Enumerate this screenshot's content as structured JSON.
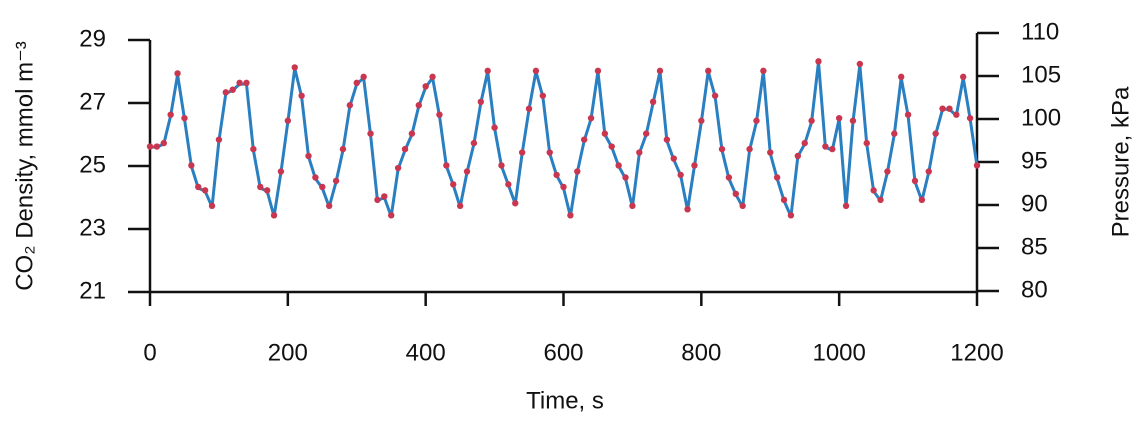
{
  "chart_data": {
    "type": "line",
    "x_label": "Time, s",
    "y_label": "CO₂ Density, mmol m⁻³",
    "y2_label": "Pressure, kPa",
    "x": [
      0,
      10,
      20,
      30,
      40,
      50,
      60,
      70,
      80,
      90,
      100,
      110,
      120,
      130,
      140,
      150,
      160,
      170,
      180,
      190,
      200,
      210,
      220,
      230,
      240,
      250,
      260,
      270,
      280,
      290,
      300,
      310,
      320,
      330,
      340,
      350,
      360,
      370,
      380,
      390,
      400,
      410,
      420,
      430,
      440,
      450,
      460,
      470,
      480,
      490,
      500,
      510,
      520,
      530,
      540,
      550,
      560,
      570,
      580,
      590,
      600,
      610,
      620,
      630,
      640,
      650,
      660,
      670,
      680,
      690,
      700,
      710,
      720,
      730,
      740,
      750,
      760,
      770,
      780,
      790,
      800,
      810,
      820,
      830,
      840,
      850,
      860,
      870,
      880,
      890,
      900,
      910,
      920,
      930,
      940,
      950,
      960,
      970,
      980,
      990,
      1000,
      1010,
      1020,
      1030,
      1040,
      1050,
      1060,
      1070,
      1080,
      1090,
      1100,
      1110,
      1120,
      1130,
      1140,
      1150,
      1160,
      1170,
      1180,
      1190,
      1200
    ],
    "series": [
      {
        "color": "#2a7fc1",
        "values": [
          25.6,
          25.6,
          25.7,
          26.6,
          27.9,
          26.5,
          25.0,
          24.3,
          24.2,
          23.7,
          25.8,
          27.3,
          27.4,
          27.6,
          27.6,
          25.5,
          24.3,
          24.2,
          23.4,
          24.8,
          26.4,
          28.1,
          27.2,
          25.3,
          24.6,
          24.3,
          23.7,
          24.5,
          25.5,
          26.9,
          27.6,
          27.8,
          26.0,
          23.9,
          24.0,
          23.4,
          24.9,
          25.5,
          26.0,
          26.9,
          27.5,
          27.8,
          26.6,
          25.0,
          24.4,
          23.7,
          24.8,
          25.7,
          27.0,
          28.0,
          26.2,
          25.0,
          24.4,
          23.8,
          25.4,
          26.8,
          28.0,
          27.2,
          25.4,
          24.7,
          24.3,
          23.4,
          24.8,
          25.8,
          26.5,
          28.0,
          26.0,
          25.6,
          25.0,
          24.6,
          23.7,
          25.4,
          26.0,
          27.0,
          28.0,
          25.8,
          25.2,
          24.7,
          23.6,
          25.0,
          26.4,
          28.0,
          27.2,
          25.5,
          24.6,
          24.1,
          23.7,
          25.5,
          26.4,
          28.0,
          25.4,
          24.6,
          23.9,
          23.4,
          25.3,
          25.7,
          26.4,
          28.3,
          25.6,
          25.5,
          26.5,
          23.7,
          26.4,
          28.2,
          25.7,
          24.2,
          23.9,
          24.8,
          26.0,
          27.8,
          26.6,
          24.5,
          23.9,
          24.8,
          26.0,
          26.8,
          26.8,
          26.6,
          27.8,
          26.5,
          25.0
        ]
      },
      {
        "color": "#c8374f",
        "axis": "y2",
        "values": [
          96.8,
          96.8,
          97.2,
          100.5,
          105.3,
          100.1,
          94.6,
          92.1,
          91.7,
          89.9,
          97.6,
          103.1,
          103.4,
          104.2,
          104.2,
          96.5,
          92.1,
          91.7,
          88.8,
          93.9,
          99.8,
          106.0,
          102.7,
          95.7,
          93.2,
          92.1,
          89.9,
          92.8,
          96.5,
          101.6,
          104.2,
          104.9,
          98.3,
          90.6,
          91.0,
          88.8,
          94.3,
          96.5,
          98.3,
          101.6,
          103.8,
          104.9,
          100.5,
          94.6,
          92.4,
          89.9,
          93.9,
          97.2,
          102.0,
          105.6,
          99.0,
          94.6,
          92.4,
          90.2,
          96.1,
          101.2,
          105.6,
          102.7,
          96.1,
          93.5,
          92.1,
          88.8,
          93.9,
          97.6,
          100.1,
          105.6,
          98.3,
          96.8,
          94.6,
          93.2,
          89.9,
          96.1,
          98.3,
          102.0,
          105.6,
          97.6,
          95.4,
          93.5,
          89.5,
          94.6,
          99.8,
          105.6,
          102.7,
          96.5,
          93.2,
          91.3,
          89.9,
          96.5,
          99.8,
          105.6,
          96.1,
          93.2,
          90.6,
          88.8,
          95.7,
          97.2,
          99.8,
          106.7,
          96.8,
          96.5,
          100.1,
          89.9,
          99.8,
          106.4,
          97.2,
          91.7,
          90.6,
          93.9,
          98.3,
          104.9,
          100.5,
          92.8,
          90.6,
          93.9,
          98.3,
          101.2,
          101.2,
          100.5,
          104.9,
          100.1,
          94.6
        ]
      }
    ],
    "xlim": [
      0,
      1200
    ],
    "xticks": [
      0,
      200,
      400,
      600,
      800,
      1000,
      1200
    ],
    "ylim": [
      21,
      29
    ],
    "yticks": [
      21,
      23,
      25,
      27,
      29
    ],
    "y2lim": [
      80,
      110
    ],
    "y2ticks": [
      80,
      85,
      90,
      95,
      100,
      105,
      110
    ]
  }
}
